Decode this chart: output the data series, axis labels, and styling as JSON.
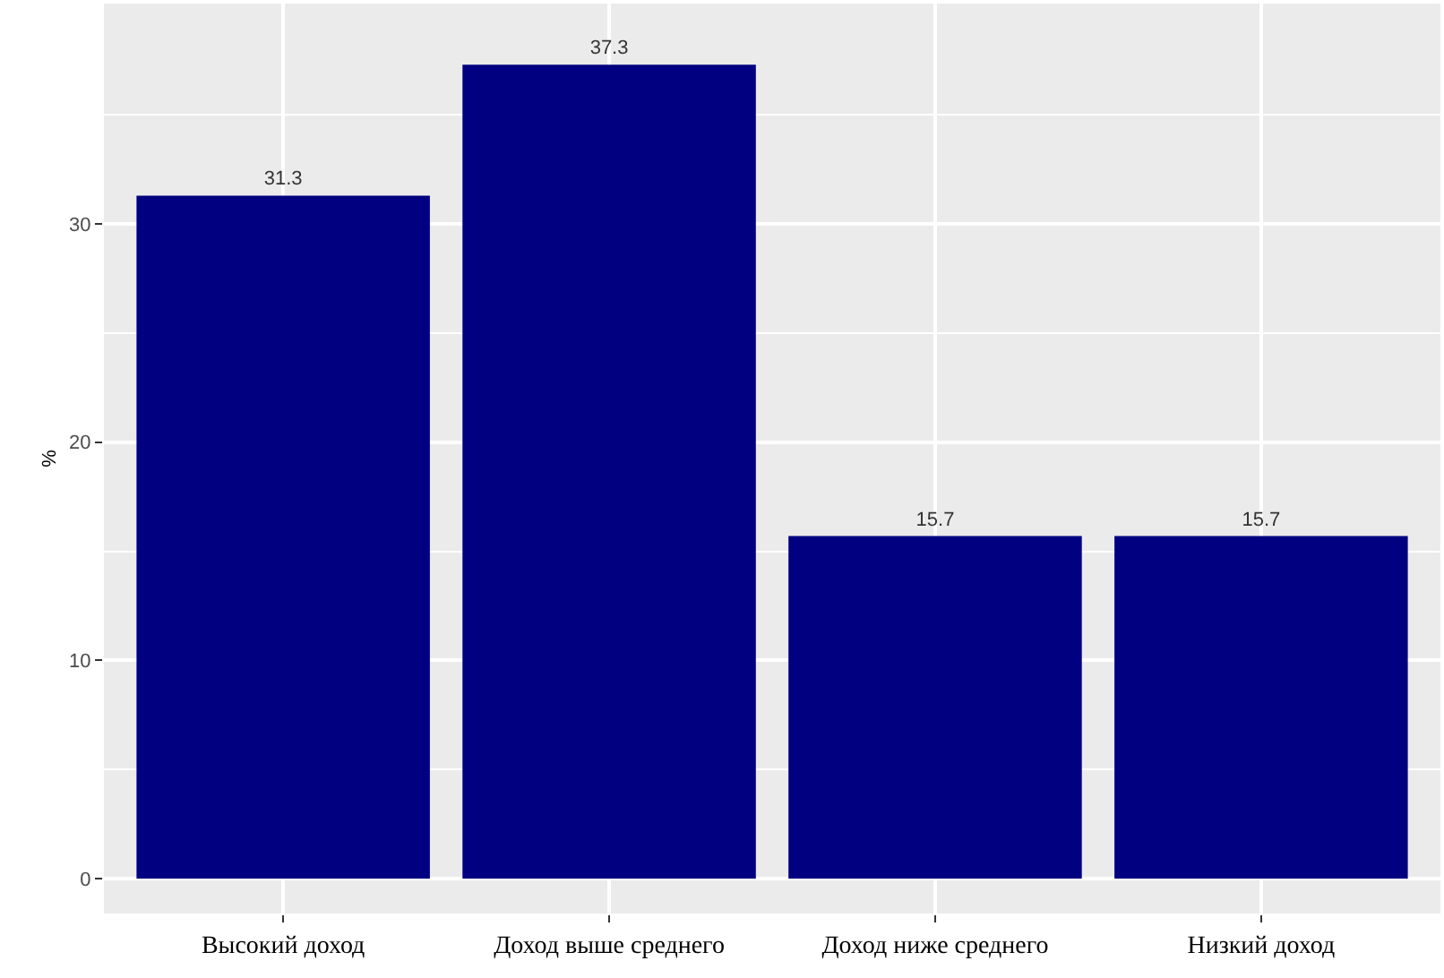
{
  "chart_data": {
    "type": "bar",
    "ylabel": "%",
    "categories": [
      "Высокий доход",
      "Доход выше среднего",
      "Доход ниже среднего",
      "Низкий доход"
    ],
    "values": [
      31.3,
      37.3,
      15.7,
      15.7
    ],
    "color": "#000080",
    "ylim": [
      -1.6,
      40.1
    ],
    "yticks": [
      0,
      10,
      20,
      30
    ],
    "grid": true,
    "data_labels": true,
    "legend": false
  }
}
